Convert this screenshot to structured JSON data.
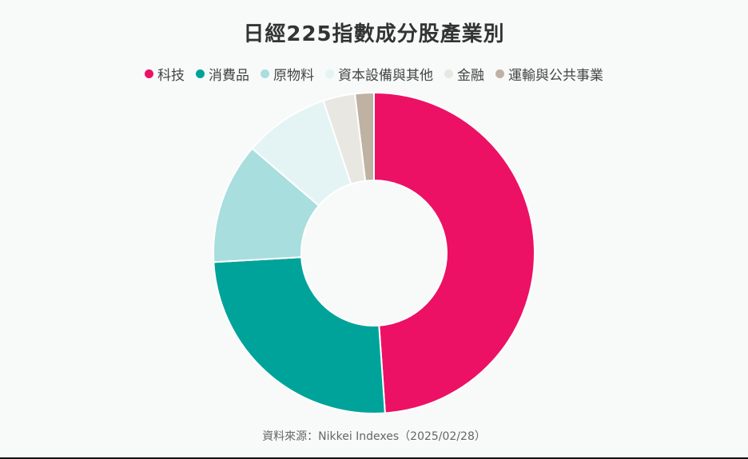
{
  "chart_data": {
    "type": "pie",
    "title": "日經225指數成分股產業別",
    "categories": [
      "科技",
      "消費品",
      "原物料",
      "資本設備與其他",
      "金融",
      "運輸與公共事業"
    ],
    "values": [
      48.9,
      25.2,
      12.2,
      8.6,
      3.2,
      1.9
    ],
    "unit": "%",
    "colors": [
      "#ec1165",
      "#00a39a",
      "#a8dedd",
      "#e4f4f4",
      "#e9e7e2",
      "#bfb2a2"
    ],
    "donut": true,
    "legend_position": "top"
  },
  "source": "資料來源：Nikkei Indexes（2025/02/28）"
}
